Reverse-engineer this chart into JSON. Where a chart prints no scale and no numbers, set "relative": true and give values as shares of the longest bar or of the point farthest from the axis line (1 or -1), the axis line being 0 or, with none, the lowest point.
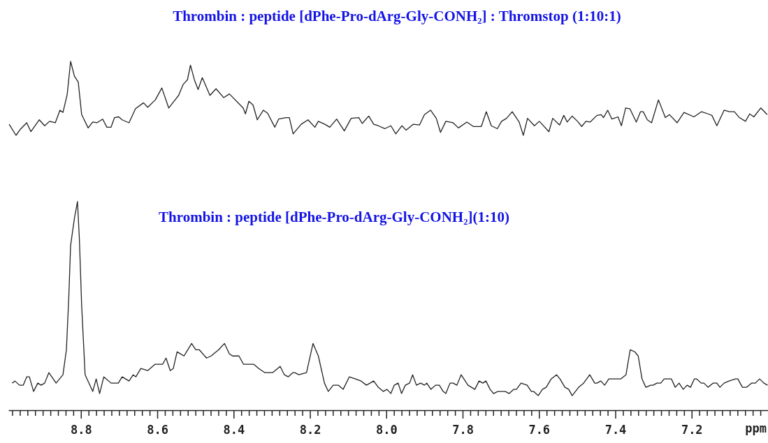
{
  "chart_data": [
    {
      "type": "line",
      "title": "Thrombin : peptide [dPhe-Pro-dArg-Gly-CONH₂] : Thromstop (1:10:1)",
      "relative": true,
      "xlim": [
        8.99,
        7.0
      ],
      "series": [
        {
          "color": "#222222",
          "x": [
            8.988,
            8.97,
            8.959,
            8.942,
            8.931,
            8.909,
            8.895,
            8.882,
            8.867,
            8.855,
            8.847,
            8.836,
            8.827,
            8.817,
            8.807,
            8.798,
            8.781,
            8.769,
            8.758,
            8.743,
            8.732,
            8.721,
            8.712,
            8.701,
            8.692,
            8.674,
            8.657,
            8.636,
            8.625,
            8.605,
            8.588,
            8.57,
            8.544,
            8.532,
            8.521,
            8.513,
            8.502,
            8.493,
            8.482,
            8.462,
            8.446,
            8.426,
            8.411,
            8.375,
            8.369,
            8.36,
            8.349,
            8.338,
            8.322,
            8.311,
            8.292,
            8.282,
            8.263,
            8.254,
            8.244,
            8.223,
            8.205,
            8.187,
            8.178,
            8.161,
            8.148,
            8.13,
            8.11,
            8.092,
            8.072,
            8.063,
            8.046,
            8.033,
            8.021,
            8.004,
            7.988,
            7.975,
            7.959,
            7.948,
            7.929,
            7.913,
            7.9,
            7.884,
            7.869,
            7.858,
            7.844,
            7.825,
            7.811,
            7.789,
            7.772,
            7.751,
            7.738,
            7.725,
            7.709,
            7.698,
            7.685,
            7.67,
            7.652,
            7.641,
            7.63,
            7.612,
            7.599,
            7.574,
            7.564,
            7.546,
            7.535,
            7.526,
            7.513,
            7.499,
            7.488,
            7.477,
            7.466,
            7.448,
            7.437,
            7.431,
            7.42,
            7.409,
            7.393,
            7.384,
            7.373,
            7.362,
            7.345,
            7.334,
            7.327,
            7.316,
            7.305,
            7.287,
            7.269,
            7.258,
            7.238,
            7.22,
            7.194,
            7.174,
            7.157,
            7.147,
            7.134,
            7.115,
            7.101,
            7.088,
            7.075,
            7.059,
            7.048,
            7.037,
            7.019,
            7.002
          ],
          "values": [
            0.15,
            0,
            0.08,
            0.17,
            0.05,
            0.21,
            0.13,
            0.19,
            0.17,
            0.34,
            0.31,
            0.55,
            1,
            0.8,
            0.72,
            0.28,
            0.1,
            0.18,
            0.17,
            0.22,
            0.11,
            0.11,
            0.24,
            0.25,
            0.21,
            0.17,
            0.36,
            0.44,
            0.38,
            0.48,
            0.64,
            0.37,
            0.54,
            0.69,
            0.75,
            0.95,
            0.74,
            0.62,
            0.78,
            0.54,
            0.63,
            0.51,
            0.56,
            0.37,
            0.29,
            0.46,
            0.41,
            0.21,
            0.34,
            0.3,
            0.11,
            0.22,
            0.24,
            0.24,
            0.02,
            0.15,
            0.21,
            0.11,
            0.19,
            0.15,
            0.11,
            0.22,
            0.06,
            0.23,
            0.24,
            0.16,
            0.26,
            0.15,
            0.13,
            0.09,
            0.13,
            0.02,
            0.13,
            0.07,
            0.15,
            0.14,
            0.28,
            0.34,
            0.23,
            0.04,
            0.19,
            0.17,
            0.1,
            0.18,
            0.12,
            0.12,
            0.32,
            0.13,
            0.09,
            0.19,
            0.23,
            0.32,
            0.18,
            0,
            0.23,
            0.13,
            0.19,
            0.05,
            0.23,
            0.14,
            0.27,
            0.18,
            0.26,
            0.19,
            0.12,
            0.19,
            0.18,
            0.27,
            0.28,
            0.24,
            0.34,
            0.22,
            0.25,
            0.13,
            0.37,
            0.36,
            0.18,
            0.32,
            0.32,
            0.21,
            0.17,
            0.48,
            0.24,
            0.28,
            0.17,
            0.31,
            0.25,
            0.32,
            0.29,
            0.27,
            0.13,
            0.34,
            0.32,
            0.32,
            0.24,
            0.19,
            0.29,
            0.25,
            0.37,
            0.28
          ]
        }
      ]
    },
    {
      "type": "line",
      "title": "Thrombin : peptide [dPhe-Pro-dArg-Gly-CONH₂](1:10)",
      "xlabel": "ppm",
      "relative": true,
      "xlim": [
        8.99,
        7.0
      ],
      "xticks": [
        {
          "value": 8.98,
          "label": null
        },
        {
          "value": 8.96,
          "label": null
        },
        {
          "value": 8.94,
          "label": null
        },
        {
          "value": 8.92,
          "label": null
        },
        {
          "value": 8.9,
          "label": null
        },
        {
          "value": 8.88,
          "label": null
        },
        {
          "value": 8.86,
          "label": null
        },
        {
          "value": 8.84,
          "label": null
        },
        {
          "value": 8.82,
          "label": null
        },
        8.8,
        {
          "value": 8.78,
          "label": null
        },
        {
          "value": 8.76,
          "label": null
        },
        {
          "value": 8.74,
          "label": null
        },
        {
          "value": 8.72,
          "label": null
        },
        {
          "value": 8.7,
          "label": null
        },
        {
          "value": 8.68,
          "label": null
        },
        {
          "value": 8.66,
          "label": null
        },
        {
          "value": 8.64,
          "label": null
        },
        {
          "value": 8.62,
          "label": null
        },
        8.6,
        {
          "value": 8.58,
          "label": null
        },
        {
          "value": 8.56,
          "label": null
        },
        {
          "value": 8.54,
          "label": null
        },
        {
          "value": 8.52,
          "label": null
        },
        {
          "value": 8.5,
          "label": null
        },
        {
          "value": 8.48,
          "label": null
        },
        {
          "value": 8.46,
          "label": null
        },
        {
          "value": 8.44,
          "label": null
        },
        {
          "value": 8.42,
          "label": null
        },
        8.4,
        {
          "value": 8.38,
          "label": null
        },
        {
          "value": 8.36,
          "label": null
        },
        {
          "value": 8.34,
          "label": null
        },
        {
          "value": 8.32,
          "label": null
        },
        {
          "value": 8.3,
          "label": null
        },
        {
          "value": 8.28,
          "label": null
        },
        {
          "value": 8.26,
          "label": null
        },
        {
          "value": 8.24,
          "label": null
        },
        {
          "value": 8.22,
          "label": null
        },
        8.2,
        {
          "value": 8.18,
          "label": null
        },
        {
          "value": 8.16,
          "label": null
        },
        {
          "value": 8.14,
          "label": null
        },
        {
          "value": 8.12,
          "label": null
        },
        {
          "value": 8.1,
          "label": null
        },
        {
          "value": 8.08,
          "label": null
        },
        {
          "value": 8.06,
          "label": null
        },
        {
          "value": 8.04,
          "label": null
        },
        {
          "value": 8.02,
          "label": null
        },
        {
          "value": 8,
          "label": "8.0"
        },
        {
          "value": 7.98,
          "label": null
        },
        {
          "value": 7.96,
          "label": null
        },
        {
          "value": 7.94,
          "label": null
        },
        {
          "value": 7.92,
          "label": null
        },
        {
          "value": 7.9,
          "label": null
        },
        {
          "value": 7.88,
          "label": null
        },
        {
          "value": 7.86,
          "label": null
        },
        {
          "value": 7.84,
          "label": null
        },
        {
          "value": 7.82,
          "label": null
        },
        7.8,
        {
          "value": 7.78,
          "label": null
        },
        {
          "value": 7.76,
          "label": null
        },
        {
          "value": 7.74,
          "label": null
        },
        {
          "value": 7.72,
          "label": null
        },
        {
          "value": 7.7,
          "label": null
        },
        {
          "value": 7.68,
          "label": null
        },
        {
          "value": 7.66,
          "label": null
        },
        {
          "value": 7.64,
          "label": null
        },
        {
          "value": 7.62,
          "label": null
        },
        7.6,
        {
          "value": 7.58,
          "label": null
        },
        {
          "value": 7.56,
          "label": null
        },
        {
          "value": 7.54,
          "label": null
        },
        {
          "value": 7.52,
          "label": null
        },
        {
          "value": 7.5,
          "label": null
        },
        {
          "value": 7.48,
          "label": null
        },
        {
          "value": 7.46,
          "label": null
        },
        {
          "value": 7.44,
          "label": null
        },
        {
          "value": 7.42,
          "label": null
        },
        7.4,
        {
          "value": 7.38,
          "label": null
        },
        {
          "value": 7.36,
          "label": null
        },
        {
          "value": 7.34,
          "label": null
        },
        {
          "value": 7.32,
          "label": null
        },
        {
          "value": 7.3,
          "label": null
        },
        {
          "value": 7.28,
          "label": null
        },
        {
          "value": 7.26,
          "label": null
        },
        {
          "value": 7.24,
          "label": null
        },
        {
          "value": 7.22,
          "label": null
        },
        7.2,
        {
          "value": 7.18,
          "label": null
        },
        {
          "value": 7.16,
          "label": null
        },
        {
          "value": 7.14,
          "label": null
        },
        {
          "value": 7.12,
          "label": null
        },
        {
          "value": 7.1,
          "label": null
        },
        {
          "value": 7.08,
          "label": null
        },
        {
          "value": 7.06,
          "label": null
        },
        {
          "value": 7.04,
          "label": null
        },
        {
          "value": 7.02,
          "label": null
        }
      ],
      "series": [
        {
          "color": "#222222",
          "x": [
            8.98,
            8.973,
            8.961,
            8.951,
            8.942,
            8.935,
            8.924,
            8.913,
            8.904,
            8.895,
            8.884,
            8.865,
            8.847,
            8.838,
            8.832,
            8.827,
            8.817,
            8.809,
            8.804,
            8.798,
            8.789,
            8.769,
            8.76,
            8.751,
            8.74,
            8.721,
            8.712,
            8.702,
            8.692,
            8.674,
            8.663,
            8.656,
            8.643,
            8.625,
            8.606,
            8.586,
            8.577,
            8.566,
            8.558,
            8.548,
            8.53,
            8.51,
            8.499,
            8.49,
            8.471,
            8.459,
            8.439,
            8.424,
            8.411,
            8.403,
            8.386,
            8.374,
            8.347,
            8.334,
            8.318,
            8.298,
            8.278,
            8.267,
            8.257,
            8.245,
            8.24,
            8.229,
            8.209,
            8.192,
            8.178,
            8.162,
            8.152,
            8.139,
            8.126,
            8.113,
            8.097,
            8.081,
            8.066,
            8.052,
            8.033,
            8.021,
            8.008,
            7.998,
            7.988,
            7.979,
            7.969,
            7.96,
            7.95,
            7.939,
            7.931,
            7.921,
            7.91,
            7.9,
            7.894,
            7.883,
            7.871,
            7.861,
            7.851,
            7.844,
            7.833,
            7.825,
            7.815,
            7.804,
            7.786,
            7.768,
            7.757,
            7.747,
            7.739,
            7.728,
            7.719,
            7.708,
            7.695,
            7.688,
            7.678,
            7.666,
            7.659,
            7.647,
            7.631,
            7.62,
            7.614,
            7.602,
            7.591,
            7.581,
            7.568,
            7.554,
            7.545,
            7.532,
            7.522,
            7.513,
            7.496,
            7.483,
            7.467,
            7.454,
            7.448,
            7.438,
            7.428,
            7.417,
            7.405,
            7.395,
            7.386,
            7.372,
            7.361,
            7.349,
            7.34,
            7.33,
            7.32,
            7.307,
            7.301,
            7.291,
            7.281,
            7.272,
            7.253,
            7.243,
            7.233,
            7.222,
            7.212,
            7.203,
            7.193,
            7.187,
            7.175,
            7.168,
            7.157,
            7.144,
            7.134,
            7.126,
            7.115,
            7.102,
            7.085,
            7.079,
            7.067,
            7.056,
            7.043,
            7.033,
            7.022,
            7.011,
            7.001
          ],
          "values": [
            0.13,
            0.14,
            0.12,
            0.12,
            0.16,
            0.16,
            0.09,
            0.13,
            0.12,
            0.13,
            0.18,
            0.13,
            0.17,
            0.29,
            0.53,
            0.79,
            0.92,
            1,
            0.82,
            0.5,
            0.17,
            0.09,
            0.15,
            0.08,
            0.16,
            0.13,
            0.13,
            0.13,
            0.16,
            0.14,
            0.17,
            0.16,
            0.2,
            0.19,
            0.22,
            0.22,
            0.25,
            0.19,
            0.2,
            0.28,
            0.26,
            0.32,
            0.29,
            0.29,
            0.25,
            0.26,
            0.29,
            0.32,
            0.27,
            0.26,
            0.26,
            0.22,
            0.22,
            0.2,
            0.18,
            0.18,
            0.21,
            0.17,
            0.16,
            0.18,
            0.18,
            0.17,
            0.18,
            0.32,
            0.26,
            0.13,
            0.09,
            0.12,
            0.12,
            0.1,
            0.16,
            0.15,
            0.14,
            0.12,
            0.14,
            0.11,
            0.09,
            0.1,
            0.08,
            0.12,
            0.13,
            0.08,
            0.12,
            0.13,
            0.17,
            0.12,
            0.13,
            0.12,
            0.13,
            0.1,
            0.12,
            0.12,
            0.09,
            0.08,
            0.13,
            0.13,
            0.12,
            0.17,
            0.12,
            0.1,
            0.14,
            0.13,
            0.14,
            0.1,
            0.08,
            0.09,
            0.09,
            0.09,
            0.08,
            0.1,
            0.1,
            0.13,
            0.12,
            0.09,
            0.09,
            0.07,
            0.1,
            0.11,
            0.15,
            0.17,
            0.15,
            0.11,
            0.1,
            0.07,
            0.11,
            0.13,
            0.17,
            0.13,
            0.13,
            0.14,
            0.12,
            0.15,
            0.15,
            0.15,
            0.15,
            0.17,
            0.29,
            0.28,
            0.26,
            0.15,
            0.11,
            0.12,
            0.12,
            0.13,
            0.13,
            0.15,
            0.15,
            0.11,
            0.13,
            0.1,
            0.12,
            0.11,
            0.15,
            0.15,
            0.13,
            0.13,
            0.11,
            0.13,
            0.13,
            0.11,
            0.13,
            0.14,
            0.15,
            0.15,
            0.11,
            0.11,
            0.13,
            0.13,
            0.15,
            0.13,
            0.12
          ]
        }
      ]
    }
  ]
}
